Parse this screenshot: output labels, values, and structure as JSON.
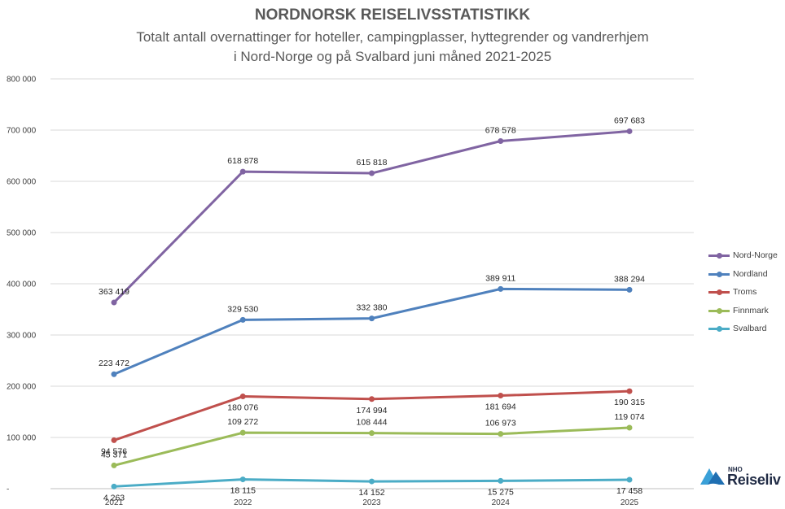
{
  "chart_data": {
    "type": "line",
    "title": "NORDNORSK REISELIVSSTATISTIKK",
    "subtitle_line1": "Totalt antall overnattinger for hoteller, campingplasser, hyttegrender og vandrerhjem",
    "subtitle_line2": "i Nord-Norge og på Svalbard juni måned 2021-2025",
    "categories": [
      "2021",
      "2022",
      "2023",
      "2024",
      "2025"
    ],
    "ylim": [
      0,
      800000
    ],
    "y_ticks": [
      {
        "value": 0,
        "label": "-"
      },
      {
        "value": 100000,
        "label": "100 000"
      },
      {
        "value": 200000,
        "label": "200 000"
      },
      {
        "value": 300000,
        "label": "300 000"
      },
      {
        "value": 400000,
        "label": "400 000"
      },
      {
        "value": 500000,
        "label": "500 000"
      },
      {
        "value": 600000,
        "label": "600 000"
      },
      {
        "value": 700000,
        "label": "700 000"
      },
      {
        "value": 800000,
        "label": "800 000"
      }
    ],
    "grid": true,
    "legend_position": "right",
    "series": [
      {
        "name": "Nord-Norge",
        "color": "#8064a2",
        "label_position": "above",
        "values": [
          363419,
          618878,
          615818,
          678578,
          697683
        ],
        "labels": [
          "363 419",
          "618 878",
          "615 818",
          "678 578",
          "697 683"
        ]
      },
      {
        "name": "Nordland",
        "color": "#4f81bd",
        "label_position": "above",
        "values": [
          223472,
          329530,
          332380,
          389911,
          388294
        ],
        "labels": [
          "223 472",
          "329 530",
          "332 380",
          "389 911",
          "388 294"
        ]
      },
      {
        "name": "Troms",
        "color": "#c0504d",
        "label_position": "below",
        "values": [
          94576,
          180076,
          174994,
          181694,
          190315
        ],
        "labels": [
          "94 576",
          "180 076",
          "174 994",
          "181 694",
          "190 315"
        ]
      },
      {
        "name": "Finnmark",
        "color": "#9bbb59",
        "label_position": "above",
        "values": [
          45371,
          109272,
          108444,
          106973,
          119074
        ],
        "labels": [
          "45 371",
          "109 272",
          "108 444",
          "106 973",
          "119 074"
        ]
      },
      {
        "name": "Svalbard",
        "color": "#4bacc6",
        "label_position": "below",
        "values": [
          4263,
          18115,
          14152,
          15275,
          17458
        ],
        "labels": [
          "4 263",
          "18 115",
          "14 152",
          "15 275",
          "17 458"
        ]
      }
    ]
  },
  "logo": {
    "small_text": "NHO",
    "text": "Reiseliv",
    "colors": [
      "#3aa0d8",
      "#1f6fb2"
    ]
  }
}
